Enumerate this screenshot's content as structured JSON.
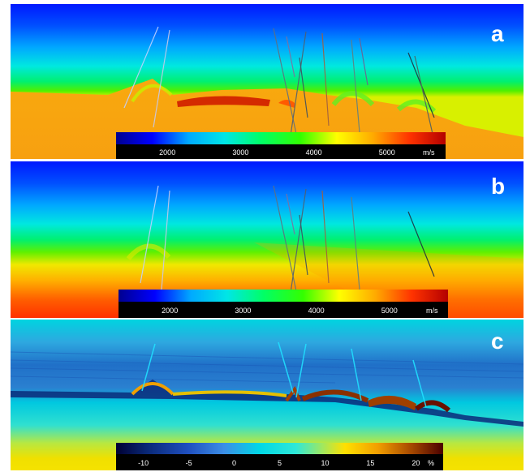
{
  "figure": {
    "panels": [
      {
        "label": "a",
        "colorbar": {
          "ticks": [
            "2000",
            "3000",
            "4000",
            "5000"
          ],
          "tick_values": [
            2000,
            3000,
            4000,
            5000
          ],
          "range": [
            1300,
            5800
          ],
          "unit": "m/s",
          "colormap": [
            "#00008f",
            "#0000ff",
            "#00aaff",
            "#00e6e6",
            "#00ff66",
            "#33ff00",
            "#ffff00",
            "#ffaa00",
            "#ff3300",
            "#b40000"
          ]
        }
      },
      {
        "label": "b",
        "colorbar": {
          "ticks": [
            "2000",
            "3000",
            "4000",
            "5000"
          ],
          "tick_values": [
            2000,
            3000,
            4000,
            5000
          ],
          "range": [
            1300,
            5800
          ],
          "unit": "m/s",
          "colormap": [
            "#00008f",
            "#0000ff",
            "#00aaff",
            "#00e6e6",
            "#00ff66",
            "#33ff00",
            "#ffff00",
            "#ffaa00",
            "#ff3300",
            "#b40000"
          ]
        }
      },
      {
        "label": "c",
        "colorbar": {
          "ticks": [
            "-10",
            "-5",
            "0",
            "5",
            "10",
            "15",
            "20"
          ],
          "tick_values": [
            -10,
            -5,
            0,
            5,
            10,
            15,
            20
          ],
          "range": [
            -13,
            23
          ],
          "unit": "%",
          "colormap": [
            "#000033",
            "#0a2a7a",
            "#1f4fbf",
            "#3c8ee6",
            "#00d8e6",
            "#2fe8d8",
            "#9fe860",
            "#ffe000",
            "#f29e00",
            "#a84a00",
            "#4a0000"
          ]
        }
      }
    ]
  }
}
